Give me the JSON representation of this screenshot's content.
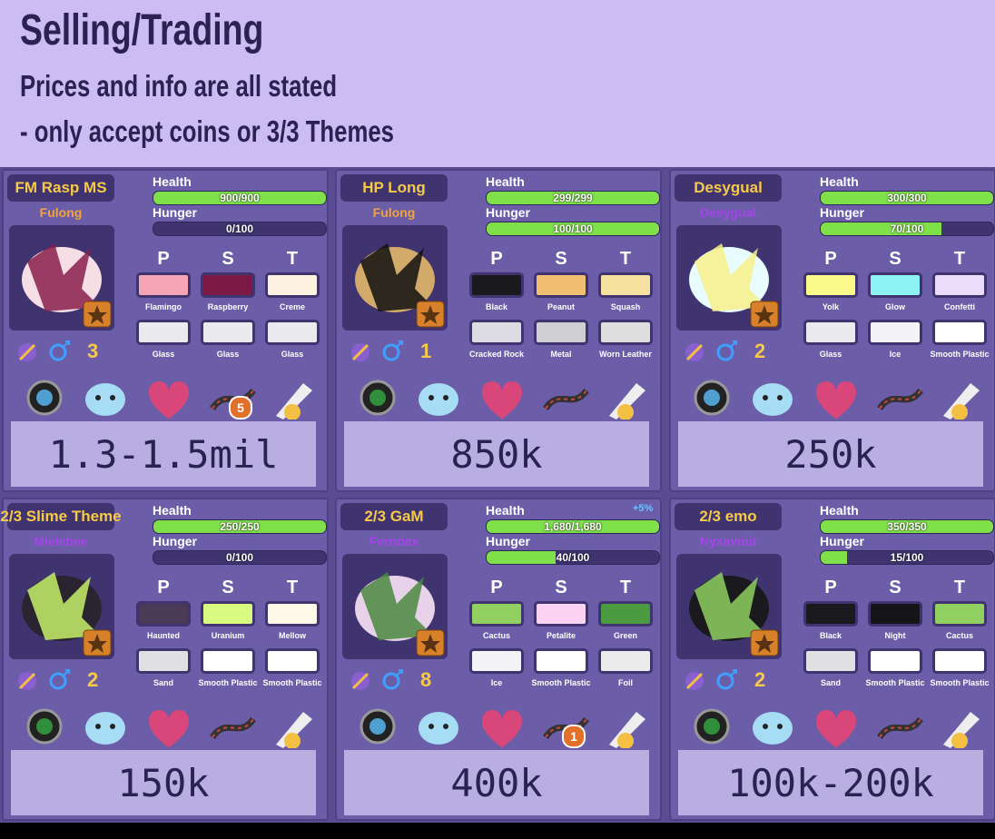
{
  "header": {
    "title": "Selling/Trading",
    "lines": [
      "Prices and info are all stated",
      "- only accept coins or 3/3 Themes"
    ]
  },
  "labels": {
    "health": "Health",
    "hunger": "Hunger",
    "columns": [
      "P",
      "S",
      "T"
    ]
  },
  "cards": [
    {
      "name": "FM Rasp MS",
      "species": "Fulong",
      "species_color": "#f2a43a",
      "health": {
        "current": 900,
        "max": 900,
        "label": "900/900"
      },
      "hunger": {
        "current": 0,
        "max": 100,
        "label": "0/100"
      },
      "primary": [
        {
          "name": "Flamingo",
          "color": "#f4a6b6"
        },
        {
          "name": "Raspberry",
          "color": "#7a1a45"
        },
        {
          "name": "Creme",
          "color": "#fdf3e0"
        }
      ],
      "secondary": [
        {
          "name": "Glass",
          "color": "#e9e9ee"
        },
        {
          "name": "Glass",
          "color": "#e9e9ee"
        },
        {
          "name": "Glass",
          "color": "#e9e9ee"
        }
      ],
      "count": 3,
      "dna_badge": 5,
      "price": "1.3-1.5mil"
    },
    {
      "name": "HP Long",
      "species": "Fulong",
      "species_color": "#f2a43a",
      "health": {
        "current": 299,
        "max": 299,
        "label": "299/299"
      },
      "hunger": {
        "current": 100,
        "max": 100,
        "label": "100/100"
      },
      "primary": [
        {
          "name": "Black",
          "color": "#1a1a1e"
        },
        {
          "name": "Peanut",
          "color": "#f0c070"
        },
        {
          "name": "Squash",
          "color": "#f6e2a0"
        }
      ],
      "secondary": [
        {
          "name": "Cracked Rock",
          "color": "#dcdce2"
        },
        {
          "name": "Metal",
          "color": "#cfcfd3"
        },
        {
          "name": "Worn Leather",
          "color": "#dedede"
        }
      ],
      "count": 1,
      "price": "850k"
    },
    {
      "name": "Desygual",
      "species": "Desygual",
      "species_color": "#a544e8",
      "health": {
        "current": 300,
        "max": 300,
        "label": "300/300"
      },
      "hunger": {
        "current": 70,
        "max": 100,
        "label": "70/100"
      },
      "primary": [
        {
          "name": "Yolk",
          "color": "#fafa8a"
        },
        {
          "name": "Glow",
          "color": "#8ff2f2"
        },
        {
          "name": "Confetti",
          "color": "#eadcfa"
        }
      ],
      "secondary": [
        {
          "name": "Glass",
          "color": "#e9e9ee"
        },
        {
          "name": "Ice",
          "color": "#f4f4f8"
        },
        {
          "name": "Smooth Plastic",
          "color": "#ffffff"
        }
      ],
      "count": 2,
      "price": "250k"
    },
    {
      "name": "2/3 Slime Theme",
      "species": "Mielebee",
      "species_color": "#a544e8",
      "health": {
        "current": 250,
        "max": 250,
        "label": "250/250"
      },
      "hunger": {
        "current": 0,
        "max": 100,
        "label": "0/100"
      },
      "primary": [
        {
          "name": "Haunted",
          "color": "#4a3a55"
        },
        {
          "name": "Uranium",
          "color": "#d8fa80"
        },
        {
          "name": "Mellow",
          "color": "#fdf8e8"
        }
      ],
      "secondary": [
        {
          "name": "Sand",
          "color": "#e0e0e2"
        },
        {
          "name": "Smooth Plastic",
          "color": "#ffffff"
        },
        {
          "name": "Smooth Plastic",
          "color": "#ffffff"
        }
      ],
      "count": 2,
      "price": "150k"
    },
    {
      "name": "2/3 GaM",
      "species": "Ferndex",
      "species_color": "#a544e8",
      "health": {
        "current": 1680,
        "max": 1680,
        "label": "1,680/1,680"
      },
      "hunger": {
        "current": 40,
        "max": 100,
        "label": "40/100"
      },
      "bonus": "+5%",
      "primary": [
        {
          "name": "Cactus",
          "color": "#8fd060"
        },
        {
          "name": "Petalite",
          "color": "#fad2f2"
        },
        {
          "name": "Green",
          "color": "#4a9a40"
        }
      ],
      "secondary": [
        {
          "name": "Ice",
          "color": "#f4f4f8"
        },
        {
          "name": "Smooth Plastic",
          "color": "#ffffff"
        },
        {
          "name": "Foil",
          "color": "#ececec"
        }
      ],
      "count": 8,
      "dna_badge": 1,
      "price": "400k"
    },
    {
      "name": "2/3 emo",
      "species": "Nyxavoid",
      "species_color": "#a544e8",
      "health": {
        "current": 350,
        "max": 350,
        "label": "350/350"
      },
      "hunger": {
        "current": 15,
        "max": 100,
        "label": "15/100"
      },
      "primary": [
        {
          "name": "Black",
          "color": "#1a1a1e"
        },
        {
          "name": "Night",
          "color": "#151518"
        },
        {
          "name": "Cactus",
          "color": "#8fd060"
        }
      ],
      "secondary": [
        {
          "name": "Sand",
          "color": "#e0e0e2"
        },
        {
          "name": "Smooth Plastic",
          "color": "#ffffff"
        },
        {
          "name": "Smooth Plastic",
          "color": "#ffffff"
        }
      ],
      "count": 2,
      "price": "100k-200k"
    }
  ]
}
